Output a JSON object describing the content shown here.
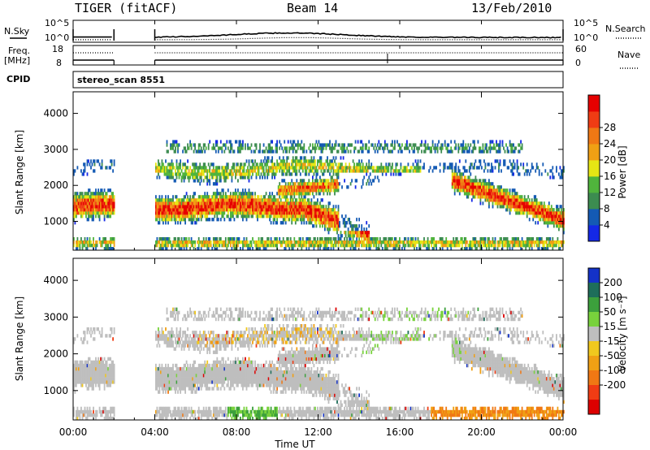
{
  "header": {
    "radar": "TIGER (fitACF)",
    "beam": "Beam 14",
    "date": "13/Feb/2010"
  },
  "status_panels": {
    "nsky_label": "N.Sky",
    "nsky_ticks": [
      "10^5",
      "10^0"
    ],
    "nsearch_label": "N.Search",
    "nsearch_ticks": [
      "10^5",
      "10^0"
    ],
    "freq_label": [
      "Freq.",
      "[MHz]"
    ],
    "freq_ticks": [
      "18",
      "8"
    ],
    "nave_label": "Nave",
    "nave_ticks": [
      "60",
      "0"
    ],
    "cpid_label": "CPID",
    "cpid_value": "stereo_scan 8551"
  },
  "chart_data": [
    {
      "type": "heatmap",
      "name": "power",
      "ylabel": "Slant Range [km]",
      "yticks": [
        "1000",
        "2000",
        "3000",
        "4000"
      ],
      "ylim": [
        200,
        4600
      ],
      "xlim": [
        0,
        24
      ],
      "colorbar": {
        "label": "Power [dB]",
        "ticks": [
          "4",
          "8",
          "12",
          "16",
          "20",
          "24",
          "28"
        ],
        "colors": [
          "#1428e6",
          "#145ab4",
          "#3c8c50",
          "#50b43c",
          "#e6e614",
          "#f0a014",
          "#f07814",
          "#f03c14",
          "#e60000"
        ]
      }
    },
    {
      "type": "heatmap",
      "name": "velocity",
      "ylabel": "Slant Range [km]",
      "yticks": [
        "1000",
        "2000",
        "3000",
        "4000"
      ],
      "ylim": [
        200,
        4600
      ],
      "xlim": [
        0,
        24
      ],
      "xlabel": "Time UT",
      "xticks": [
        "00:00",
        "04:00",
        "08:00",
        "12:00",
        "16:00",
        "20:00",
        "00:00"
      ],
      "colorbar": {
        "label": "Velocity [m s⁻¹]",
        "ticks": [
          "200",
          "100",
          "50",
          "15",
          "-15",
          "-50",
          "-100",
          "-200"
        ],
        "colors": [
          "#1432c8",
          "#1e6e5a",
          "#3ca03c",
          "#78d23c",
          "#bebebe",
          "#f0c81e",
          "#f0a014",
          "#f07814",
          "#f03c14",
          "#dc0000"
        ]
      }
    }
  ],
  "data_gap": {
    "start": 2.0,
    "end": 4.0
  }
}
